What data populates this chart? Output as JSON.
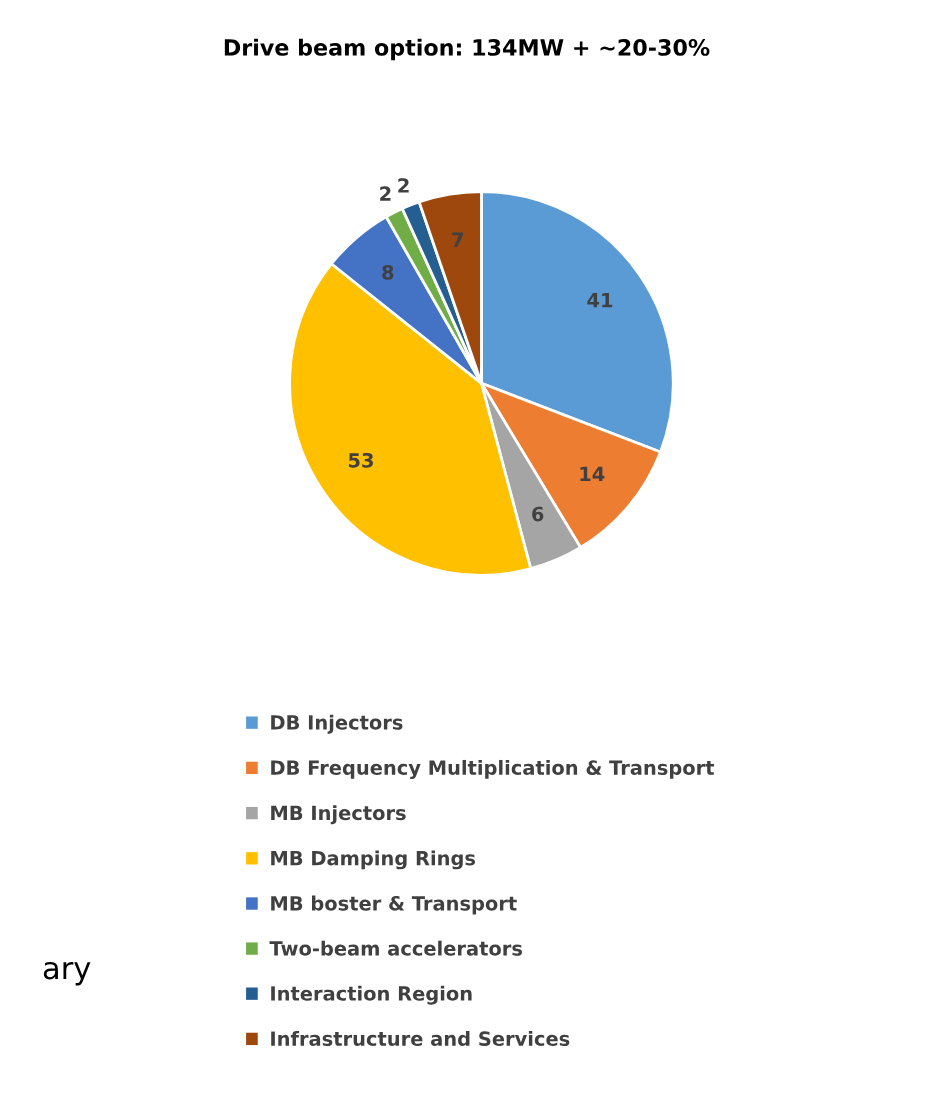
{
  "chart_data": {
    "type": "pie",
    "title": "Drive beam option: 134MW + ~20-30%",
    "categories": [
      "DB Injectors",
      "DB Frequency Multiplication & Transport",
      "MB Injectors",
      "MB Damping Rings",
      "MB boster & Transport",
      "Two-beam accelerators",
      "Interaction Region",
      "Infrastructure and Services"
    ],
    "values": [
      41,
      14,
      6,
      53,
      8,
      2,
      2,
      7
    ],
    "colors": [
      "#5b9bd5",
      "#ed7d31",
      "#a5a5a5",
      "#ffc000",
      "#4472c4",
      "#70ad47",
      "#255e91",
      "#9e480e"
    ],
    "data_labels": true,
    "legend": "bottom",
    "annotations": [
      "ary"
    ]
  }
}
